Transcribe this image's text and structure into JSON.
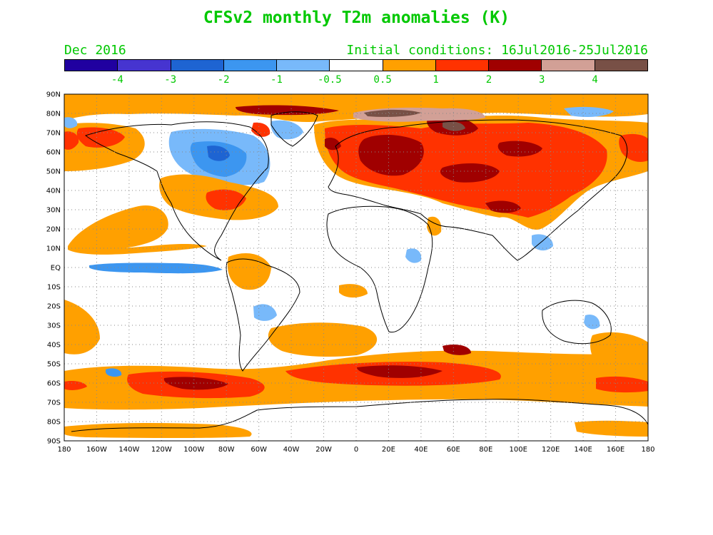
{
  "title": "CFSv2 monthly T2m anomalies (K)",
  "valid_month": "Dec 2016",
  "initial_conditions": "Initial conditions: 16Jul2016-25Jul2016",
  "colorbar": {
    "colors": [
      "#2000a0",
      "#4634d0",
      "#1e64d2",
      "#3c96f0",
      "#78b9fa",
      "#ffffff",
      "#ffa000",
      "#ff3200",
      "#a00000",
      "#d2a096",
      "#785046"
    ],
    "labels": [
      "-4",
      "-3",
      "-2",
      "-1",
      "-0.5",
      "0.5",
      "1",
      "2",
      "3",
      "4"
    ]
  },
  "map": {
    "lat_labels": [
      "90N",
      "80N",
      "70N",
      "60N",
      "50N",
      "40N",
      "30N",
      "20N",
      "10N",
      "EQ",
      "10S",
      "20S",
      "30S",
      "40S",
      "50S",
      "60S",
      "70S",
      "80S",
      "90S"
    ],
    "lon_labels": [
      "180",
      "160W",
      "140W",
      "120W",
      "100W",
      "80W",
      "60W",
      "40W",
      "20W",
      "0",
      "20E",
      "40E",
      "60E",
      "80E",
      "100E",
      "120E",
      "140E",
      "160E",
      "180"
    ]
  }
}
